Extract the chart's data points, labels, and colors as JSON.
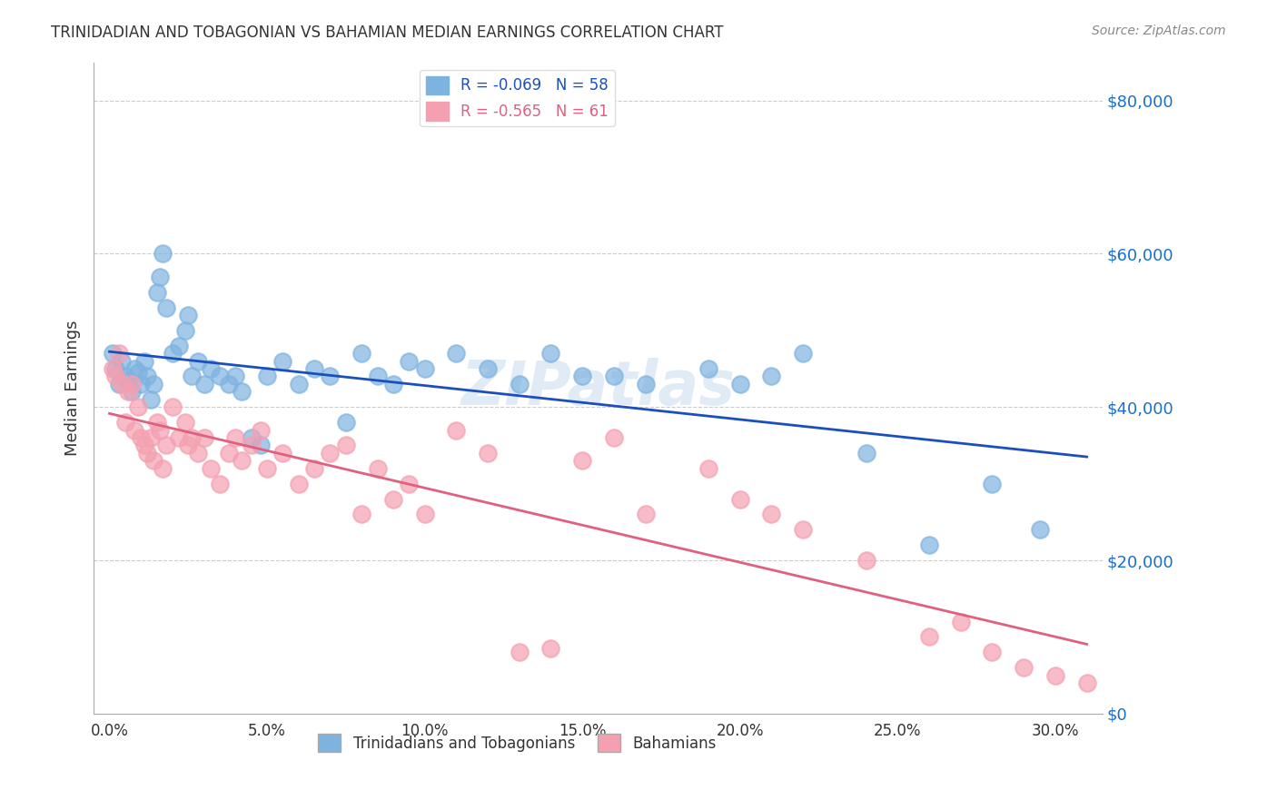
{
  "title": "TRINIDADIAN AND TOBAGONIAN VS BAHAMIAN MEDIAN EARNINGS CORRELATION CHART",
  "source": "Source: ZipAtlas.com",
  "xlabel_ticks": [
    "0.0%",
    "5.0%",
    "10.0%",
    "15.0%",
    "20.0%",
    "25.0%",
    "30.0%"
  ],
  "xlabel_vals": [
    0.0,
    0.05,
    0.1,
    0.15,
    0.2,
    0.25,
    0.3
  ],
  "ylabel": "Median Earnings",
  "ylabel_ticks": [
    "$0",
    "$20,000",
    "$40,000",
    "$60,000",
    "$80,000"
  ],
  "ylabel_vals": [
    0,
    20000,
    40000,
    60000,
    80000
  ],
  "ylim": [
    0,
    85000
  ],
  "xlim": [
    -0.005,
    0.315
  ],
  "blue_R": -0.069,
  "blue_N": 58,
  "pink_R": -0.565,
  "pink_N": 61,
  "blue_color": "#7eb3e0",
  "pink_color": "#f4a0b0",
  "blue_line_color": "#1a4fbd",
  "pink_line_color": "#e06080",
  "blue_label": "Trinidadians and Tobagonians",
  "pink_label": "Bahamians",
  "watermark": "ZIPatlas",
  "blue_x": [
    0.001,
    0.002,
    0.003,
    0.004,
    0.005,
    0.006,
    0.007,
    0.008,
    0.009,
    0.01,
    0.011,
    0.012,
    0.013,
    0.014,
    0.015,
    0.016,
    0.017,
    0.018,
    0.02,
    0.022,
    0.024,
    0.025,
    0.026,
    0.028,
    0.03,
    0.032,
    0.035,
    0.038,
    0.04,
    0.042,
    0.045,
    0.048,
    0.05,
    0.055,
    0.06,
    0.065,
    0.07,
    0.075,
    0.08,
    0.085,
    0.09,
    0.095,
    0.1,
    0.11,
    0.12,
    0.13,
    0.14,
    0.15,
    0.16,
    0.17,
    0.19,
    0.2,
    0.21,
    0.22,
    0.24,
    0.26,
    0.28,
    0.295
  ],
  "blue_y": [
    47000,
    45000,
    43000,
    46000,
    44000,
    43500,
    42000,
    45000,
    44500,
    43000,
    46000,
    44000,
    41000,
    43000,
    55000,
    57000,
    60000,
    53000,
    47000,
    48000,
    50000,
    52000,
    44000,
    46000,
    43000,
    45000,
    44000,
    43000,
    44000,
    42000,
    36000,
    35000,
    44000,
    46000,
    43000,
    45000,
    44000,
    38000,
    47000,
    44000,
    43000,
    46000,
    45000,
    47000,
    45000,
    43000,
    47000,
    44000,
    44000,
    43000,
    45000,
    43000,
    44000,
    47000,
    34000,
    22000,
    30000,
    24000
  ],
  "pink_x": [
    0.001,
    0.002,
    0.003,
    0.004,
    0.005,
    0.006,
    0.007,
    0.008,
    0.009,
    0.01,
    0.011,
    0.012,
    0.013,
    0.014,
    0.015,
    0.016,
    0.017,
    0.018,
    0.02,
    0.022,
    0.024,
    0.025,
    0.026,
    0.028,
    0.03,
    0.032,
    0.035,
    0.038,
    0.04,
    0.042,
    0.045,
    0.048,
    0.05,
    0.055,
    0.06,
    0.065,
    0.07,
    0.075,
    0.08,
    0.085,
    0.09,
    0.095,
    0.1,
    0.11,
    0.12,
    0.13,
    0.14,
    0.15,
    0.16,
    0.17,
    0.19,
    0.2,
    0.21,
    0.22,
    0.24,
    0.26,
    0.27,
    0.28,
    0.29,
    0.3,
    0.31
  ],
  "pink_y": [
    45000,
    44000,
    47000,
    43000,
    38000,
    42000,
    43000,
    37000,
    40000,
    36000,
    35000,
    34000,
    36000,
    33000,
    38000,
    37000,
    32000,
    35000,
    40000,
    36000,
    38000,
    35000,
    36000,
    34000,
    36000,
    32000,
    30000,
    34000,
    36000,
    33000,
    35000,
    37000,
    32000,
    34000,
    30000,
    32000,
    34000,
    35000,
    26000,
    32000,
    28000,
    30000,
    26000,
    37000,
    34000,
    8000,
    8500,
    33000,
    36000,
    26000,
    32000,
    28000,
    26000,
    24000,
    20000,
    10000,
    12000,
    8000,
    6000,
    5000,
    4000
  ]
}
